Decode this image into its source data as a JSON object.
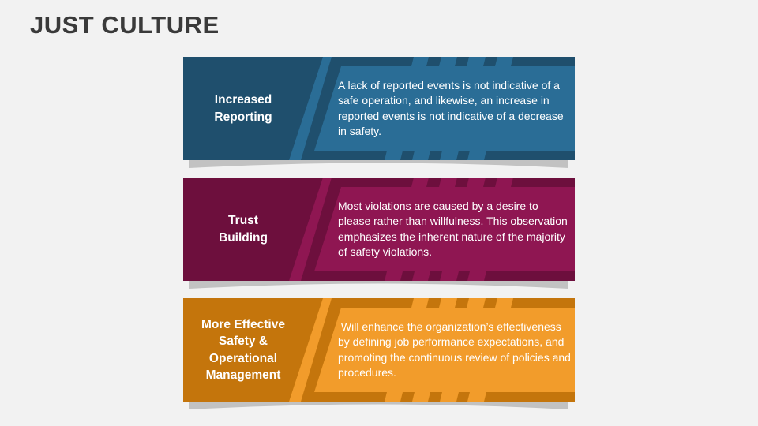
{
  "title": "JUST CULTURE",
  "cards": [
    {
      "heading": "Increased\nReporting",
      "text": "A lack of reported events is not indicative of a safe operation, and likewise, an increase in reported events is not indicative of a decrease in safety.",
      "dark": "#1f4f6d",
      "light": "#2a6d96"
    },
    {
      "heading": "Trust\nBuilding",
      "text": "Most violations are caused by a desire to please rather than willfulness. This observation emphasizes the inherent nature of the majority of safety violations.",
      "dark": "#6d0f3d",
      "light": "#8f1652"
    },
    {
      "heading": "More Effective\nSafety &\nOperational\nManagement",
      "text": " Will enhance the organization’s effectiveness by defining job performance expectations, and promoting the continuous review of policies and procedures.",
      "dark": "#c4750c",
      "light": "#f29c2b"
    }
  ]
}
